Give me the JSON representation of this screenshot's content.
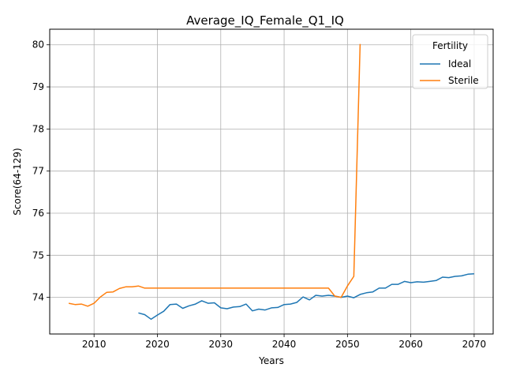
{
  "chart_data": {
    "type": "line",
    "title": "Average_IQ_Female_Q1_IQ",
    "xlabel": "Years",
    "ylabel": "Score(64-129)",
    "xlim": [
      2003,
      2073
    ],
    "ylim": [
      73.13,
      80.37
    ],
    "xticks": [
      2010,
      2020,
      2030,
      2040,
      2050,
      2060,
      2070
    ],
    "yticks": [
      74,
      75,
      76,
      77,
      78,
      79,
      80
    ],
    "grid": true,
    "legend": {
      "title": "Fertility",
      "placement": "top-right"
    },
    "series": [
      {
        "name": "Ideal",
        "color": "#1f77b4",
        "x": [
          2017,
          2018,
          2019,
          2020,
          2021,
          2022,
          2023,
          2024,
          2025,
          2026,
          2027,
          2028,
          2029,
          2030,
          2031,
          2032,
          2033,
          2034,
          2035,
          2036,
          2037,
          2038,
          2039,
          2040,
          2041,
          2042,
          2043,
          2044,
          2045,
          2046,
          2047,
          2048,
          2049,
          2050,
          2051,
          2052,
          2053,
          2054,
          2055,
          2056,
          2057,
          2058,
          2059,
          2060,
          2061,
          2062,
          2063,
          2064,
          2065,
          2066,
          2067,
          2068,
          2069,
          2070
        ],
        "y": [
          73.63,
          73.59,
          73.48,
          73.58,
          73.67,
          73.83,
          73.84,
          73.74,
          73.8,
          73.84,
          73.92,
          73.86,
          73.87,
          73.75,
          73.73,
          73.77,
          73.78,
          73.84,
          73.68,
          73.72,
          73.7,
          73.75,
          73.76,
          73.83,
          73.84,
          73.88,
          74.01,
          73.94,
          74.05,
          74.03,
          74.05,
          74.03,
          74.0,
          74.03,
          73.99,
          74.07,
          74.11,
          74.13,
          74.22,
          74.22,
          74.31,
          74.31,
          74.38,
          74.35,
          74.37,
          74.36,
          74.38,
          74.4,
          74.48,
          74.47,
          74.5,
          74.51,
          74.55,
          74.56
        ]
      },
      {
        "name": "Sterile",
        "color": "#ff7f0e",
        "x": [
          2006,
          2007,
          2008,
          2009,
          2010,
          2011,
          2012,
          2013,
          2014,
          2015,
          2016,
          2017,
          2018,
          2019,
          2020,
          2021,
          2022,
          2023,
          2024,
          2025,
          2026,
          2027,
          2028,
          2029,
          2030,
          2031,
          2032,
          2033,
          2034,
          2035,
          2036,
          2037,
          2038,
          2039,
          2040,
          2041,
          2042,
          2043,
          2044,
          2045,
          2046,
          2047,
          2048,
          2049,
          2050,
          2051,
          2052
        ],
        "y": [
          73.86,
          73.83,
          73.84,
          73.79,
          73.86,
          74.01,
          74.12,
          74.13,
          74.21,
          74.25,
          74.25,
          74.27,
          74.22,
          74.22,
          74.22,
          74.22,
          74.22,
          74.22,
          74.22,
          74.22,
          74.22,
          74.22,
          74.22,
          74.22,
          74.22,
          74.22,
          74.22,
          74.22,
          74.22,
          74.22,
          74.22,
          74.22,
          74.22,
          74.22,
          74.22,
          74.22,
          74.22,
          74.22,
          74.22,
          74.22,
          74.22,
          74.22,
          74.03,
          74.0,
          74.27,
          74.5,
          80.02
        ]
      }
    ]
  }
}
